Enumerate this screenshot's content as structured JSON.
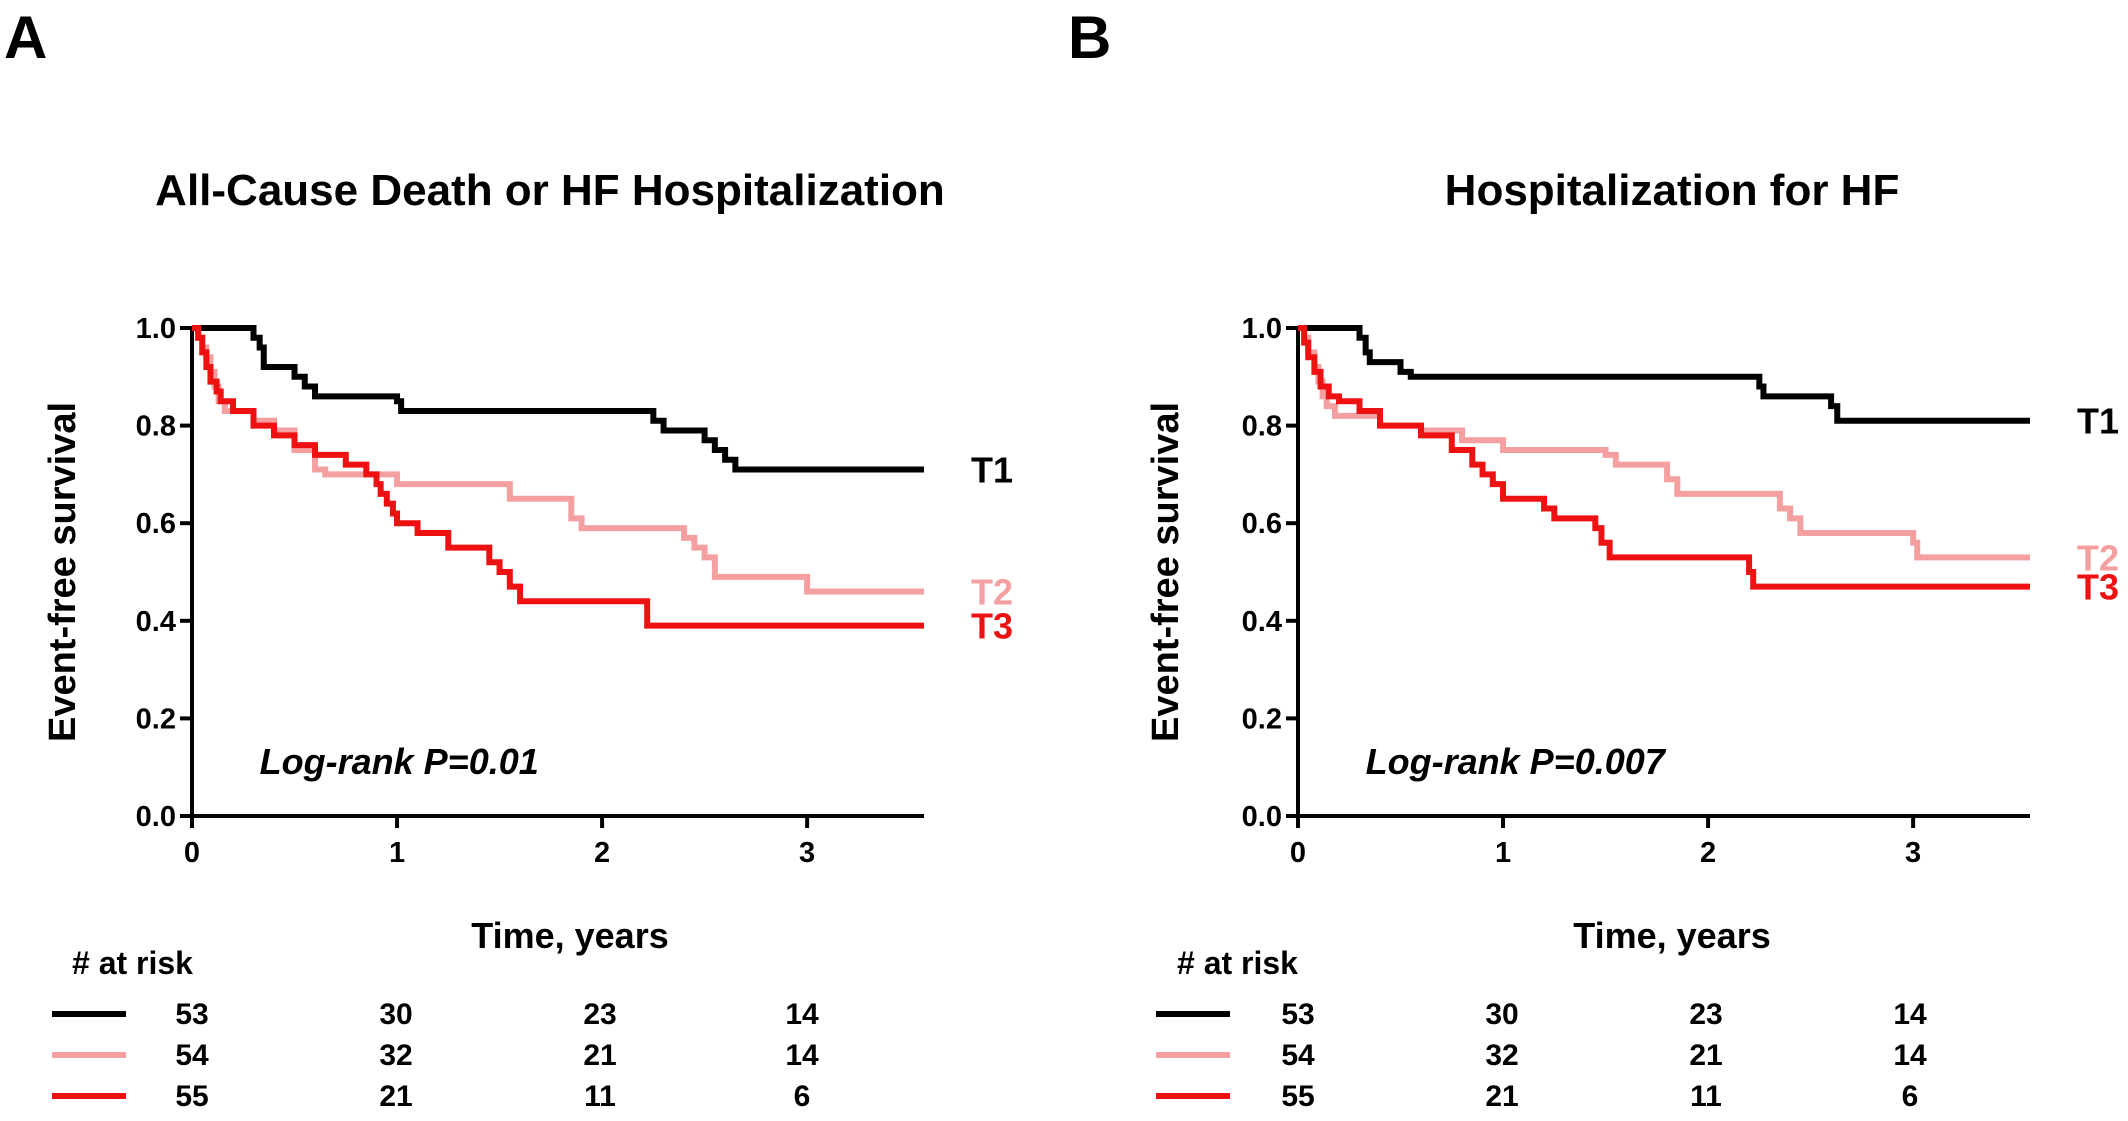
{
  "colors": {
    "T1": "#000000",
    "T2": "#f4a0a0",
    "T3": "#ee1111",
    "axis": "#000000"
  },
  "chart_data": [
    {
      "type": "line",
      "panel_letter": "A",
      "title": "All-Cause Death or HF Hospitalization",
      "xlabel": "Time, years",
      "ylabel": "Event-free survival",
      "xlim": [
        0,
        3.57
      ],
      "ylim": [
        0,
        1.0
      ],
      "x_ticks": [
        "0",
        "1",
        "2",
        "3"
      ],
      "y_ticks": [
        "0.0",
        "0.2",
        "0.4",
        "0.6",
        "0.8",
        "1.0"
      ],
      "annotation": "Log-rank P=0.01",
      "grid": false,
      "series": [
        {
          "name": "T1",
          "color_key": "T1",
          "steps": [
            [
              0,
              1.0
            ],
            [
              0.3,
              0.98
            ],
            [
              0.33,
              0.96
            ],
            [
              0.35,
              0.92
            ],
            [
              0.5,
              0.9
            ],
            [
              0.55,
              0.88
            ],
            [
              0.6,
              0.86
            ],
            [
              1.0,
              0.85
            ],
            [
              1.02,
              0.83
            ],
            [
              2.25,
              0.81
            ],
            [
              2.3,
              0.79
            ],
            [
              2.5,
              0.77
            ],
            [
              2.55,
              0.75
            ],
            [
              2.6,
              0.73
            ],
            [
              2.65,
              0.71
            ],
            [
              3.57,
              0.71
            ]
          ]
        },
        {
          "name": "T2",
          "color_key": "T2",
          "steps": [
            [
              0,
              1.0
            ],
            [
              0.03,
              0.98
            ],
            [
              0.05,
              0.96
            ],
            [
              0.07,
              0.94
            ],
            [
              0.09,
              0.91
            ],
            [
              0.11,
              0.88
            ],
            [
              0.13,
              0.85
            ],
            [
              0.16,
              0.83
            ],
            [
              0.3,
              0.81
            ],
            [
              0.4,
              0.79
            ],
            [
              0.5,
              0.75
            ],
            [
              0.6,
              0.71
            ],
            [
              0.65,
              0.7
            ],
            [
              1.0,
              0.68
            ],
            [
              1.55,
              0.65
            ],
            [
              1.85,
              0.61
            ],
            [
              1.9,
              0.59
            ],
            [
              2.4,
              0.57
            ],
            [
              2.45,
              0.55
            ],
            [
              2.5,
              0.53
            ],
            [
              2.55,
              0.49
            ],
            [
              3.0,
              0.46
            ],
            [
              3.57,
              0.46
            ]
          ]
        },
        {
          "name": "T3",
          "color_key": "T3",
          "steps": [
            [
              0,
              1.0
            ],
            [
              0.03,
              0.98
            ],
            [
              0.05,
              0.95
            ],
            [
              0.07,
              0.92
            ],
            [
              0.09,
              0.89
            ],
            [
              0.12,
              0.87
            ],
            [
              0.14,
              0.85
            ],
            [
              0.2,
              0.83
            ],
            [
              0.3,
              0.8
            ],
            [
              0.4,
              0.78
            ],
            [
              0.5,
              0.76
            ],
            [
              0.6,
              0.74
            ],
            [
              0.75,
              0.72
            ],
            [
              0.85,
              0.7
            ],
            [
              0.9,
              0.68
            ],
            [
              0.92,
              0.66
            ],
            [
              0.95,
              0.64
            ],
            [
              0.98,
              0.62
            ],
            [
              1.0,
              0.6
            ],
            [
              1.1,
              0.58
            ],
            [
              1.25,
              0.55
            ],
            [
              1.45,
              0.52
            ],
            [
              1.5,
              0.5
            ],
            [
              1.55,
              0.47
            ],
            [
              1.6,
              0.44
            ],
            [
              2.22,
              0.39
            ],
            [
              3.57,
              0.39
            ]
          ]
        }
      ],
      "at_risk": {
        "title": "# at risk",
        "rows": [
          {
            "color_key": "T1",
            "values": [
              "53",
              "30",
              "23",
              "14"
            ]
          },
          {
            "color_key": "T2",
            "values": [
              "54",
              "32",
              "21",
              "14"
            ]
          },
          {
            "color_key": "T3",
            "values": [
              "55",
              "21",
              "11",
              "6"
            ]
          }
        ]
      }
    },
    {
      "type": "line",
      "panel_letter": "B",
      "title": "Hospitalization for HF",
      "xlabel": "Time, years",
      "ylabel": "Event-free survival",
      "xlim": [
        0,
        3.57
      ],
      "ylim": [
        0,
        1.0
      ],
      "x_ticks": [
        "0",
        "1",
        "2",
        "3"
      ],
      "y_ticks": [
        "0.0",
        "0.2",
        "0.4",
        "0.6",
        "0.8",
        "1.0"
      ],
      "annotation": "Log-rank P=0.007",
      "grid": false,
      "series": [
        {
          "name": "T1",
          "color_key": "T1",
          "steps": [
            [
              0,
              1.0
            ],
            [
              0.3,
              0.98
            ],
            [
              0.33,
              0.95
            ],
            [
              0.35,
              0.93
            ],
            [
              0.5,
              0.91
            ],
            [
              0.55,
              0.9
            ],
            [
              2.25,
              0.88
            ],
            [
              2.27,
              0.86
            ],
            [
              2.6,
              0.84
            ],
            [
              2.63,
              0.81
            ],
            [
              3.57,
              0.81
            ]
          ]
        },
        {
          "name": "T2",
          "color_key": "T2",
          "steps": [
            [
              0,
              1.0
            ],
            [
              0.03,
              0.98
            ],
            [
              0.05,
              0.95
            ],
            [
              0.08,
              0.92
            ],
            [
              0.1,
              0.89
            ],
            [
              0.12,
              0.86
            ],
            [
              0.14,
              0.84
            ],
            [
              0.18,
              0.82
            ],
            [
              0.4,
              0.8
            ],
            [
              0.6,
              0.79
            ],
            [
              0.8,
              0.77
            ],
            [
              1.0,
              0.75
            ],
            [
              1.5,
              0.74
            ],
            [
              1.55,
              0.72
            ],
            [
              1.8,
              0.69
            ],
            [
              1.85,
              0.66
            ],
            [
              2.35,
              0.63
            ],
            [
              2.4,
              0.61
            ],
            [
              2.45,
              0.58
            ],
            [
              3.0,
              0.56
            ],
            [
              3.02,
              0.53
            ],
            [
              3.57,
              0.53
            ]
          ]
        },
        {
          "name": "T3",
          "color_key": "T3",
          "steps": [
            [
              0,
              1.0
            ],
            [
              0.03,
              0.97
            ],
            [
              0.05,
              0.94
            ],
            [
              0.08,
              0.91
            ],
            [
              0.11,
              0.88
            ],
            [
              0.15,
              0.86
            ],
            [
              0.2,
              0.85
            ],
            [
              0.3,
              0.83
            ],
            [
              0.4,
              0.8
            ],
            [
              0.6,
              0.78
            ],
            [
              0.75,
              0.75
            ],
            [
              0.85,
              0.72
            ],
            [
              0.9,
              0.7
            ],
            [
              0.95,
              0.68
            ],
            [
              1.0,
              0.65
            ],
            [
              1.2,
              0.63
            ],
            [
              1.25,
              0.61
            ],
            [
              1.45,
              0.59
            ],
            [
              1.48,
              0.56
            ],
            [
              1.52,
              0.53
            ],
            [
              2.2,
              0.5
            ],
            [
              2.22,
              0.47
            ],
            [
              3.57,
              0.47
            ]
          ]
        }
      ],
      "at_risk": {
        "title": "# at risk",
        "rows": [
          {
            "color_key": "T1",
            "values": [
              "53",
              "30",
              "23",
              "14"
            ]
          },
          {
            "color_key": "T2",
            "values": [
              "54",
              "32",
              "21",
              "14"
            ]
          },
          {
            "color_key": "T3",
            "values": [
              "55",
              "21",
              "11",
              "6"
            ]
          }
        ]
      }
    }
  ]
}
